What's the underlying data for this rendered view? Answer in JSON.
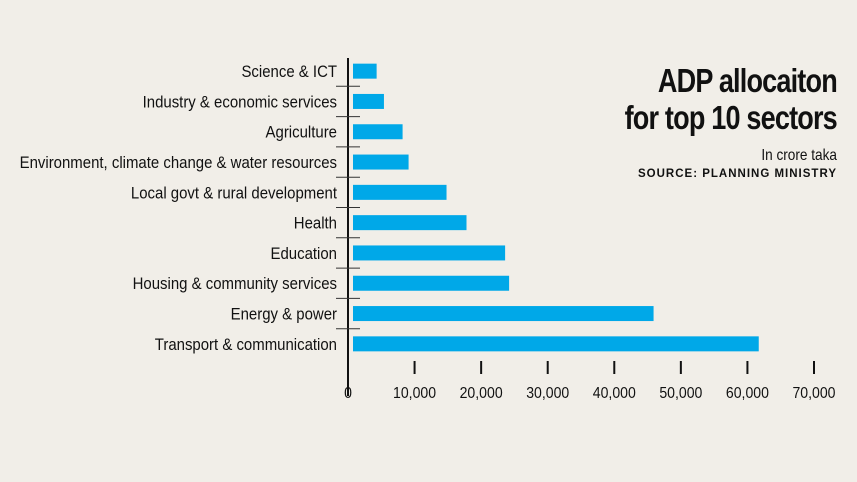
{
  "chart_data": {
    "type": "bar",
    "orientation": "horizontal",
    "title": "ADP allocaiton for top 10 sectors",
    "title_lines": [
      "ADP allocaiton",
      "for top 10 sectors"
    ],
    "subtitle": "In crore taka",
    "source": "SOURCE: PLANNING MINISTRY",
    "categories": [
      "Science & ICT",
      "Industry & economic services",
      "Agriculture",
      "Environment, climate change & water resources",
      "Local govt & rural development",
      "Health",
      "Education",
      "Housing & community services",
      "Energy & power",
      "Transport & communication"
    ],
    "values": [
      4300,
      5400,
      8200,
      9100,
      14800,
      17800,
      23600,
      24200,
      45900,
      61700
    ],
    "xlim": [
      0,
      70000
    ],
    "xticks": [
      "0",
      "10,000",
      "20,000",
      "30,000",
      "40,000",
      "50,000",
      "60,000",
      "70,000"
    ],
    "grid": false,
    "bar_color": "#00a8e8"
  }
}
